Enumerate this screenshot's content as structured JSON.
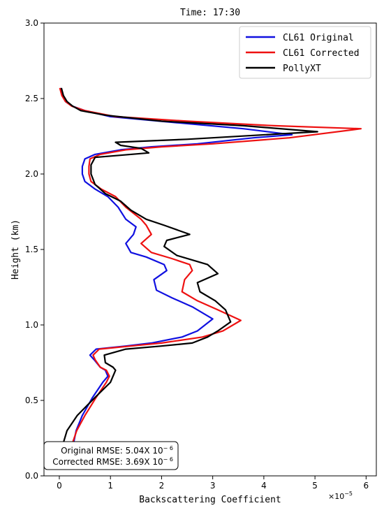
{
  "chart_data": {
    "type": "line",
    "title": "Time: 17:30",
    "xlabel": "Backscattering Coefficient",
    "ylabel": "Height (km)",
    "x_scale_label": "×10",
    "x_scale_exponent": "−5",
    "xlim": [
      -0.3,
      6.2
    ],
    "ylim": [
      0.0,
      3.0
    ],
    "x_ticks": [
      0,
      1,
      2,
      3,
      4,
      5,
      6
    ],
    "x_tick_labels": [
      "0",
      "1",
      "2",
      "3",
      "4",
      "5",
      "6"
    ],
    "y_ticks": [
      0.0,
      0.5,
      1.0,
      1.5,
      2.0,
      2.5,
      3.0
    ],
    "y_tick_labels": [
      "0.0",
      "0.5",
      "1.0",
      "1.5",
      "2.0",
      "2.5",
      "3.0"
    ],
    "legend_position": "top-right",
    "series": [
      {
        "name": "CL61 Original",
        "color": "#1010e0",
        "points": [
          [
            0.28,
            0.22
          ],
          [
            0.33,
            0.3
          ],
          [
            0.45,
            0.4
          ],
          [
            0.65,
            0.52
          ],
          [
            0.85,
            0.62
          ],
          [
            0.95,
            0.66
          ],
          [
            0.9,
            0.7
          ],
          [
            0.8,
            0.72
          ],
          [
            0.68,
            0.77
          ],
          [
            0.6,
            0.8
          ],
          [
            0.72,
            0.84
          ],
          [
            1.3,
            0.86
          ],
          [
            1.8,
            0.88
          ],
          [
            2.4,
            0.92
          ],
          [
            2.7,
            0.96
          ],
          [
            3.0,
            1.04
          ],
          [
            2.6,
            1.12
          ],
          [
            2.2,
            1.18
          ],
          [
            1.9,
            1.23
          ],
          [
            1.85,
            1.3
          ],
          [
            2.1,
            1.36
          ],
          [
            2.05,
            1.4
          ],
          [
            1.7,
            1.45
          ],
          [
            1.4,
            1.48
          ],
          [
            1.3,
            1.54
          ],
          [
            1.45,
            1.6
          ],
          [
            1.5,
            1.65
          ],
          [
            1.3,
            1.7
          ],
          [
            1.15,
            1.78
          ],
          [
            0.95,
            1.85
          ],
          [
            0.7,
            1.9
          ],
          [
            0.5,
            1.95
          ],
          [
            0.45,
            2.0
          ],
          [
            0.45,
            2.05
          ],
          [
            0.5,
            2.1
          ],
          [
            0.7,
            2.13
          ],
          [
            1.2,
            2.16
          ],
          [
            1.8,
            2.18
          ],
          [
            2.7,
            2.2
          ],
          [
            3.8,
            2.24
          ],
          [
            4.55,
            2.26
          ],
          [
            3.6,
            2.3
          ],
          [
            2.3,
            2.34
          ],
          [
            1.0,
            2.38
          ],
          [
            0.5,
            2.42
          ],
          [
            0.25,
            2.45
          ],
          [
            0.12,
            2.48
          ],
          [
            0.06,
            2.52
          ],
          [
            0.02,
            2.57
          ]
        ]
      },
      {
        "name": "CL61 Corrected",
        "color": "#ee1111",
        "points": [
          [
            0.26,
            0.22
          ],
          [
            0.34,
            0.3
          ],
          [
            0.5,
            0.4
          ],
          [
            0.72,
            0.52
          ],
          [
            0.92,
            0.62
          ],
          [
            0.98,
            0.66
          ],
          [
            0.92,
            0.7
          ],
          [
            0.8,
            0.72
          ],
          [
            0.7,
            0.77
          ],
          [
            0.66,
            0.8
          ],
          [
            0.78,
            0.84
          ],
          [
            1.4,
            0.86
          ],
          [
            2.0,
            0.88
          ],
          [
            2.8,
            0.92
          ],
          [
            3.2,
            0.96
          ],
          [
            3.55,
            1.03
          ],
          [
            3.1,
            1.1
          ],
          [
            2.7,
            1.16
          ],
          [
            2.4,
            1.22
          ],
          [
            2.45,
            1.3
          ],
          [
            2.6,
            1.36
          ],
          [
            2.55,
            1.4
          ],
          [
            2.2,
            1.44
          ],
          [
            1.8,
            1.48
          ],
          [
            1.6,
            1.54
          ],
          [
            1.8,
            1.6
          ],
          [
            1.7,
            1.66
          ],
          [
            1.6,
            1.7
          ],
          [
            1.3,
            1.78
          ],
          [
            1.1,
            1.85
          ],
          [
            0.82,
            1.9
          ],
          [
            0.62,
            1.95
          ],
          [
            0.58,
            2.0
          ],
          [
            0.58,
            2.05
          ],
          [
            0.6,
            2.1
          ],
          [
            0.8,
            2.13
          ],
          [
            1.3,
            2.16
          ],
          [
            2.0,
            2.18
          ],
          [
            3.0,
            2.2
          ],
          [
            4.5,
            2.24
          ],
          [
            5.9,
            2.3
          ],
          [
            4.2,
            2.32
          ],
          [
            2.5,
            2.35
          ],
          [
            1.1,
            2.38
          ],
          [
            0.5,
            2.42
          ],
          [
            0.24,
            2.45
          ],
          [
            0.12,
            2.48
          ],
          [
            0.05,
            2.52
          ],
          [
            0.01,
            2.57
          ]
        ]
      },
      {
        "name": "PollyXT",
        "color": "#000000",
        "points": [
          [
            0.08,
            0.22
          ],
          [
            0.15,
            0.3
          ],
          [
            0.35,
            0.4
          ],
          [
            0.7,
            0.52
          ],
          [
            1.0,
            0.62
          ],
          [
            1.1,
            0.7
          ],
          [
            1.05,
            0.72
          ],
          [
            0.9,
            0.75
          ],
          [
            0.88,
            0.8
          ],
          [
            1.3,
            0.84
          ],
          [
            2.0,
            0.86
          ],
          [
            2.6,
            0.88
          ],
          [
            2.9,
            0.92
          ],
          [
            3.1,
            0.96
          ],
          [
            3.35,
            1.02
          ],
          [
            3.25,
            1.1
          ],
          [
            3.05,
            1.16
          ],
          [
            2.75,
            1.22
          ],
          [
            2.7,
            1.28
          ],
          [
            3.1,
            1.34
          ],
          [
            2.9,
            1.4
          ],
          [
            2.3,
            1.46
          ],
          [
            2.05,
            1.52
          ],
          [
            2.1,
            1.56
          ],
          [
            2.55,
            1.6
          ],
          [
            2.05,
            1.66
          ],
          [
            1.7,
            1.7
          ],
          [
            1.4,
            1.76
          ],
          [
            1.2,
            1.82
          ],
          [
            0.9,
            1.87
          ],
          [
            0.7,
            1.93
          ],
          [
            0.62,
            2.0
          ],
          [
            0.62,
            2.06
          ],
          [
            0.7,
            2.11
          ],
          [
            1.75,
            2.14
          ],
          [
            1.6,
            2.17
          ],
          [
            1.2,
            2.19
          ],
          [
            1.1,
            2.21
          ],
          [
            2.5,
            2.23
          ],
          [
            5.05,
            2.28
          ],
          [
            3.6,
            2.32
          ],
          [
            2.0,
            2.35
          ],
          [
            0.9,
            2.39
          ],
          [
            0.42,
            2.42
          ],
          [
            0.26,
            2.45
          ],
          [
            0.15,
            2.48
          ],
          [
            0.08,
            2.52
          ],
          [
            0.04,
            2.57
          ]
        ]
      }
    ],
    "annotation": {
      "lines": [
        {
          "prefix": "Original RMSE: 5.04X 10",
          "exponent": "− 6"
        },
        {
          "prefix": "Corrected RMSE: 3.69X 10",
          "exponent": "− 6"
        }
      ]
    }
  }
}
